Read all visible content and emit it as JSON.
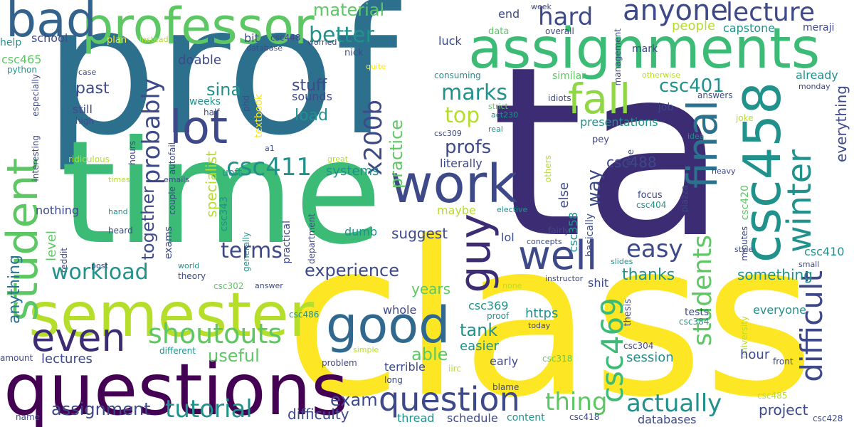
{
  "palette": {
    "dark_purple": "#440154",
    "indigo": "#3b2c74",
    "blue": "#33638d",
    "teal_blue": "#2d708e",
    "teal": "#21918c",
    "sea_green": "#27ad81",
    "green": "#5dc863",
    "lime": "#aadc32",
    "yellow": "#fde725"
  },
  "words": {
    "prof": "prof",
    "ta": "ta",
    "class": "class",
    "time": "time",
    "questions": "questions",
    "assignments": "assignments",
    "semester": "semester",
    "professor": "professor",
    "bad": "bad",
    "work": "work",
    "good": "good",
    "csc458": "csc458",
    "final": "final",
    "guy": "guy",
    "even": "even",
    "lot": "lot",
    "student": "student",
    "fall": "fall",
    "winter": "winter",
    "question": "question",
    "well": "well",
    "anyone": "anyone",
    "lecture": "lecture",
    "shoutouts": "shoutouts",
    "tutorial": "tutorial",
    "difficult": "difficult",
    "actually": "actually",
    "students": "students",
    "thing": "thing",
    "csc469": "csc469",
    "csc411": "csc411",
    "x200b": "x200b",
    "probably": "probably",
    "workload": "workload",
    "easy": "easy",
    "terms": "terms",
    "assignment": "assignment",
    "better": "better",
    "hard": "hard",
    "material": "material",
    "marks": "marks",
    "top": "top",
    "practice": "practice",
    "way": "way",
    "anything": "anything",
    "profs": "profs",
    "csc401": "csc401",
    "together": "together",
    "experience": "experience",
    "useful": "useful",
    "exam": "exam",
    "able": "able",
    "tank": "tank",
    "sina": "sina",
    "past": "past",
    "stuff": "stuff",
    "load": "load",
    "specialist": "specialist",
    "thanks": "thanks",
    "everything": "everything",
    "project": "project",
    "something": "something",
    "csc488": "csc488",
    "suggest": "suggest",
    "difficulty": "difficulty",
    "lectures": "lectures",
    "schedule": "schedule",
    "years": "years",
    "easier": "easier",
    "https": "https",
    "session": "session",
    "everyone": "everyone",
    "terrible": "terrible",
    "people": "people",
    "capstone": "capstone",
    "meraji": "meraji",
    "else": "else",
    "systems": "systems",
    "nothing": "nothing",
    "whole": "whole",
    "csc369": "csc369",
    "doable": "doable",
    "sounds": "sounds",
    "dumb": "dumb",
    "level": "level",
    "already": "already",
    "csc410": "csc410",
    "csc358": "csc358",
    "basically": "basically",
    "uoft": "uoft",
    "still": "still",
    "weeks": "weeks",
    "csc420": "csc420",
    "hour": "hour",
    "maybe": "maybe",
    "csc343": "csc343",
    "end": "end",
    "literally": "literally",
    "presentations": "presentations",
    "exams": "exams",
    "practical": "practical",
    "school": "school",
    "help": "help",
    "bit": "bit",
    "luck": "luck",
    "textbook": "textbook",
    "data": "data",
    "overall": "overall",
    "week": "week",
    "mark": "mark",
    "lol": "lol",
    "csc465": "csc465",
    "csc448": "csc448",
    "plan": "plan",
    "instead": "instead",
    "worried": "worried",
    "management": "management",
    "database": "database",
    "nick": "nick",
    "python": "python",
    "case": "case",
    "quite": "quite",
    "consuming": "consuming",
    "especially": "especially",
    "similar": "similar",
    "otherwise": "otherwise",
    "monday": "monday",
    "answers": "answers",
    "idiots": "idiots",
    "job": "job",
    "half": "half",
    "phd": "phd",
    "strict": "strict",
    "act230": "act230",
    "joke": "joke",
    "high": "high",
    "autofail": "autofail",
    "real": "real",
    "csc309": "csc309",
    "idea": "idea",
    "pey": "pey",
    "fine": "fine",
    "interesting": "interesting",
    "hours": "hours",
    "a1": "a1",
    "great": "great",
    "ridiculous": "ridiculous",
    "times": "times",
    "emails": "emails",
    "others": "others",
    "piazza": "piazza",
    "heavy": "heavy",
    "couple": "couple",
    "focus": "focus",
    "csc404": "csc404",
    "hand": "hand",
    "elective": "elective",
    "fairly": "fairly",
    "minutes": "minutes",
    "heard": "heard",
    "department": "department",
    "generally": "generally",
    "reddit": "reddit",
    "concepts": "concepts",
    "style": "style",
    "post": "post",
    "world": "world",
    "slides": "slides",
    "small": "small",
    "theory": "theory",
    "instructor": "instructor",
    "csc302": "csc302",
    "answer": "answer",
    "none": "none",
    "csc486": "csc486",
    "proof": "proof",
    "thesis": "thesis",
    "csc384": "csc384",
    "today": "today",
    "tests": "tests",
    "different": "different",
    "simple": "simple",
    "university": "university",
    "amount": "amount",
    "csc318": "csc318",
    "csc304": "csc304",
    "problem": "problem",
    "iirc": "iirc",
    "early": "early",
    "front": "front",
    "long": "long",
    "blame": "blame",
    "csc485": "csc485",
    "name": "name",
    "thread": "thread",
    "content": "content",
    "csc418": "csc418",
    "databases": "databases",
    "csc428": "csc428",
    "shit": "shit"
  }
}
